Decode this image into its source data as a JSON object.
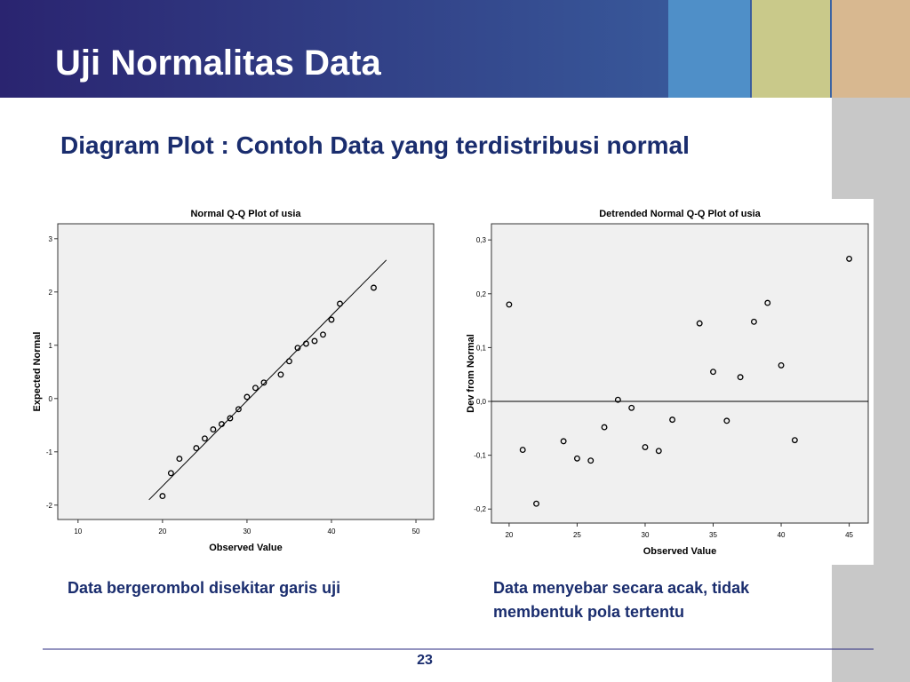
{
  "slide": {
    "title": "Uji Normalitas Data",
    "subtitle": "Diagram Plot : Contoh Data yang terdistribusi normal",
    "caption_left": "Data bergerombol disekitar garis uji",
    "caption_right_1": "Data menyebar secara acak, tidak",
    "caption_right_2": "membentuk pola tertentu",
    "page_number": "23"
  },
  "chart_data": [
    {
      "type": "scatter",
      "title": "Normal Q-Q Plot of usia",
      "x_label": "Observed Value",
      "y_label": "Expected Normal",
      "x": [
        20,
        21,
        22,
        24,
        25,
        26,
        27,
        28,
        29,
        30,
        31,
        32,
        34,
        35,
        36,
        37,
        38,
        39,
        40,
        41,
        45
      ],
      "values": [
        -1.83,
        -1.4,
        -1.13,
        -0.93,
        -0.75,
        -0.58,
        -0.48,
        -0.37,
        -0.2,
        0.03,
        0.2,
        0.3,
        0.45,
        0.7,
        0.95,
        1.03,
        1.08,
        1.2,
        1.48,
        1.78,
        2.08
      ],
      "line": {
        "x": [
          18.4,
          46.5
        ],
        "y": [
          -1.9,
          2.6
        ]
      },
      "xlim": [
        7.6,
        52.1
      ],
      "ylim": [
        -2.27,
        3.28
      ],
      "xticks": [
        10,
        20,
        30,
        40,
        50
      ],
      "yticks": [
        -2,
        -1,
        0,
        1,
        2,
        3
      ]
    },
    {
      "type": "scatter",
      "title": "Detrended Normal Q-Q Plot of usia",
      "x_label": "Observed Value",
      "y_label": "Dev from Normal",
      "x": [
        20,
        21,
        22,
        24,
        25,
        26,
        27,
        28,
        29,
        30,
        31,
        32,
        34,
        35,
        36,
        37,
        38,
        39,
        40,
        41,
        45
      ],
      "values": [
        0.18,
        -0.09,
        -0.19,
        -0.074,
        -0.106,
        -0.11,
        -0.048,
        0.003,
        -0.012,
        -0.085,
        -0.092,
        -0.034,
        0.145,
        0.055,
        -0.036,
        0.045,
        0.148,
        0.183,
        0.067,
        -0.072,
        0.265
      ],
      "reference_y": 0,
      "xlim": [
        18.7,
        46.4
      ],
      "ylim": [
        -0.226,
        0.33
      ],
      "xticks": [
        20,
        25,
        30,
        35,
        40,
        45
      ],
      "yticks": [
        {
          "value": -0.2,
          "label": "-0,2"
        },
        {
          "value": -0.1,
          "label": "-0,1"
        },
        {
          "value": 0,
          "label": "0,0"
        },
        {
          "value": 0.1,
          "label": "0,1"
        },
        {
          "value": 0.2,
          "label": "0,2"
        },
        {
          "value": 0.3,
          "label": "0,3"
        }
      ]
    }
  ]
}
